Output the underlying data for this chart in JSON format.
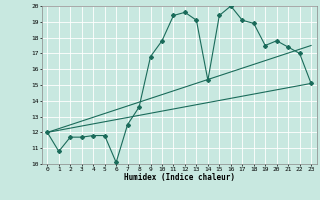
{
  "xlabel": "Humidex (Indice chaleur)",
  "ylabel": "",
  "xlim": [
    -0.5,
    23.5
  ],
  "ylim": [
    10,
    20
  ],
  "yticks": [
    10,
    11,
    12,
    13,
    14,
    15,
    16,
    17,
    18,
    19,
    20
  ],
  "xticks": [
    0,
    1,
    2,
    3,
    4,
    5,
    6,
    7,
    8,
    9,
    10,
    11,
    12,
    13,
    14,
    15,
    16,
    17,
    18,
    19,
    20,
    21,
    22,
    23
  ],
  "bg_color": "#c8e8e0",
  "grid_color": "#ffffff",
  "line_color": "#1a6b5a",
  "line1_x": [
    0,
    1,
    2,
    3,
    4,
    5,
    6,
    7,
    8,
    9,
    10,
    11,
    12,
    13,
    14,
    15,
    16,
    17,
    18,
    19,
    20,
    21,
    22,
    23
  ],
  "line1_y": [
    12.0,
    10.8,
    11.7,
    11.7,
    11.8,
    11.8,
    10.1,
    12.5,
    13.6,
    16.8,
    17.8,
    19.4,
    19.6,
    19.1,
    15.3,
    19.4,
    20.0,
    19.1,
    18.9,
    17.5,
    17.8,
    17.4,
    17.0,
    15.1
  ],
  "line2_x": [
    0,
    23
  ],
  "line2_y": [
    12.0,
    15.1
  ],
  "line3_x": [
    0,
    23
  ],
  "line3_y": [
    12.0,
    17.5
  ]
}
